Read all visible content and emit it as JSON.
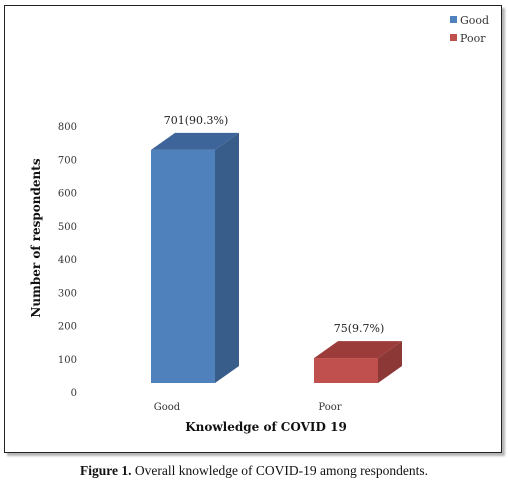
{
  "chart_data": {
    "type": "bar",
    "categories": [
      "Good",
      "Poor"
    ],
    "values": [
      701,
      75
    ],
    "data_labels": [
      "701(90.3%)",
      "75(9.7%)"
    ],
    "colors": [
      "#4f81bd",
      "#c0504d"
    ],
    "side_colors": [
      "#385d8a",
      "#8c3836"
    ],
    "top_colors": [
      "#3d659a",
      "#9b3c3a"
    ],
    "xlabel": "Knowledge of COVID 19",
    "ylabel": "Number of respondents",
    "ylim": [
      0,
      800
    ],
    "yticks": [
      0,
      100,
      200,
      300,
      400,
      500,
      600,
      700,
      800
    ],
    "grid": false,
    "legend_position": "top-right",
    "legend": [
      {
        "name": "Good",
        "color": "#4f81bd"
      },
      {
        "name": "Poor",
        "color": "#c0504d"
      }
    ],
    "three_d": true
  },
  "caption": {
    "label": "Figure 1.",
    "text": " Overall knowledge of COVID-19 among respondents."
  }
}
